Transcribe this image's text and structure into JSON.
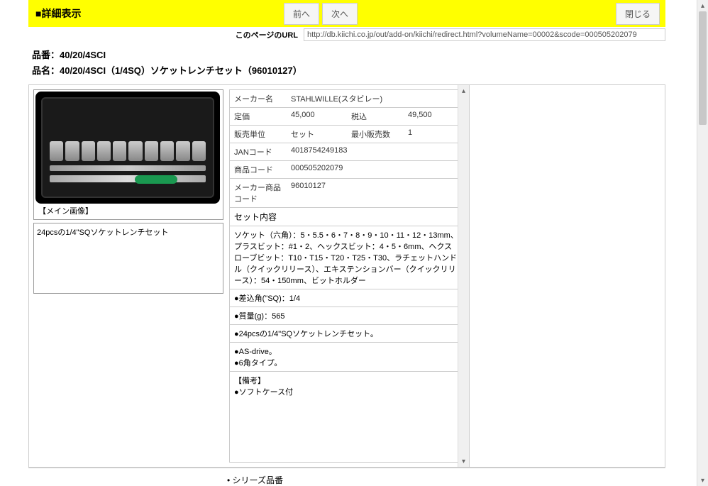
{
  "header": {
    "title": "■詳細表示",
    "prev_label": "前へ",
    "next_label": "次へ",
    "close_label": "閉じる"
  },
  "url_section": {
    "label": "このページのURL",
    "value": "http://db.kiichi.co.jp/out/add-on/kiichi/redirect.html?volumeName=00002&scode=000505202079"
  },
  "product": {
    "code_label": "品番：",
    "code": "40/20/4SCI",
    "name_label": "品名：",
    "name": "40/20/4SCI（1/4SQ）ソケットレンチセット（96010127）"
  },
  "image": {
    "caption": "【メイン画像】",
    "description": "24pcsの1/4\"SQソケットレンチセット"
  },
  "spec": {
    "rows": [
      {
        "l1": "メーカー名",
        "v1": "STAHLWILLE(スタビレー)",
        "l2": "",
        "v2": ""
      },
      {
        "l1": "定価",
        "v1": "45,000",
        "l2": "税込",
        "v2": "49,500"
      },
      {
        "l1": "販売単位",
        "v1": "セット",
        "l2": "最小販売数",
        "v2": "1"
      },
      {
        "l1": "JANコード",
        "v1": "4018754249183",
        "l2": "",
        "v2": ""
      },
      {
        "l1": "商品コード",
        "v1": "000505202079",
        "l2": "",
        "v2": ""
      },
      {
        "l1": "メーカー商品コード",
        "v1": "96010127",
        "l2": "",
        "v2": ""
      }
    ],
    "set_title": "セット内容",
    "set_content": "ソケット（六角）：5・5.5・6・7・8・9・10・11・12・13mm、プラスビット：#1・2、ヘックスビット：4・5・6mm、ヘクスローブビット：T10・T15・T20・T25・T30、ラチェットハンドル（クイックリリース）、エキステンションバー（クイックリリース）：54・150mm、ビットホルダー",
    "bullets": [
      "●差込角(\"SQ)：1/4",
      "●質量(g)：565",
      "●24pcsの1/4\"SQソケットレンチセット。"
    ],
    "drive_lines": "●AS-drive。\n●6角タイプ。",
    "remarks_title": "【備考】",
    "remarks": "●ソフトケース付"
  },
  "footer": {
    "series_label": "シリーズ品番"
  },
  "colors": {
    "yellow": "#ffff00",
    "border": "#cccccc",
    "text": "#333333"
  }
}
